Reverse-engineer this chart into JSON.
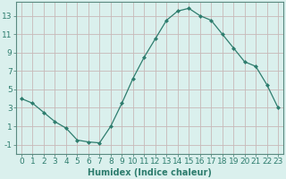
{
  "x": [
    0,
    1,
    2,
    3,
    4,
    5,
    6,
    7,
    8,
    9,
    10,
    11,
    12,
    13,
    14,
    15,
    16,
    17,
    18,
    19,
    20,
    21,
    22,
    23
  ],
  "y": [
    4.0,
    3.5,
    2.5,
    1.5,
    0.8,
    -0.5,
    -0.7,
    -0.8,
    1.0,
    3.5,
    6.2,
    8.5,
    10.5,
    12.5,
    13.5,
    13.8,
    13.0,
    12.5,
    11.0,
    9.5,
    8.0,
    7.5,
    5.5,
    3.0
  ],
  "line_color": "#2e7d6e",
  "marker": "D",
  "marker_size": 2.0,
  "bg_color": "#daf0ed",
  "grid_color": "#c8b8b8",
  "xlabel": "Humidex (Indice chaleur)",
  "xlim": [
    -0.5,
    23.5
  ],
  "ylim": [
    -2,
    14.5
  ],
  "yticks": [
    -1,
    1,
    3,
    5,
    7,
    9,
    11,
    13
  ],
  "xtick_labels": [
    "0",
    "1",
    "2",
    "3",
    "4",
    "5",
    "6",
    "7",
    "8",
    "9",
    "10",
    "11",
    "12",
    "13",
    "14",
    "15",
    "16",
    "17",
    "18",
    "19",
    "20",
    "21",
    "22",
    "23"
  ],
  "xlabel_fontsize": 7,
  "tick_fontsize": 6.5,
  "tick_color": "#2e7d6e",
  "axis_color": "#5a8a80"
}
